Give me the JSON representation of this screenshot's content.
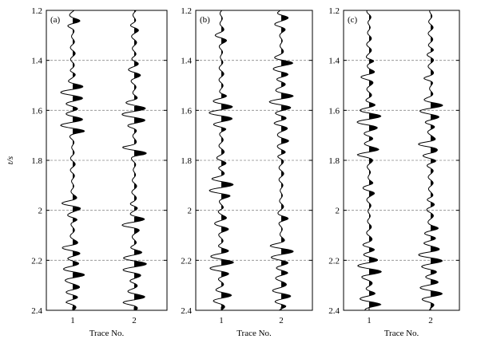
{
  "chart_data": [
    {
      "type": "seismic-wiggle",
      "panel_label": "(a)",
      "ylabel": "t/s",
      "xlabel": "Trace No.",
      "ylim": [
        1.2,
        2.4
      ],
      "y_reversed": true,
      "y_ticks": [
        "1.2",
        "1.4",
        "1.6",
        "1.8",
        "2",
        "2.2",
        "2.4"
      ],
      "categories": [
        "1",
        "2"
      ],
      "grid": "horizontal dashed",
      "fill": "positive lobes black",
      "seed": 11
    },
    {
      "type": "seismic-wiggle",
      "panel_label": "(b)",
      "xlabel": "Trace No.",
      "ylim": [
        1.2,
        2.4
      ],
      "y_reversed": true,
      "y_ticks": [
        "1.2",
        "1.4",
        "1.6",
        "1.8",
        "2",
        "2.2",
        "2.4"
      ],
      "categories": [
        "1",
        "2"
      ],
      "grid": "horizontal dashed",
      "fill": "positive lobes black",
      "seed": 23
    },
    {
      "type": "seismic-wiggle",
      "panel_label": "(c)",
      "xlabel": "Trace No.",
      "ylim": [
        1.2,
        2.4
      ],
      "y_reversed": true,
      "y_ticks": [
        "1.2",
        "1.4",
        "1.6",
        "1.8",
        "2",
        "2.2",
        "2.4"
      ],
      "categories": [
        "1",
        "2"
      ],
      "grid": "horizontal dashed",
      "fill": "positive lobes black",
      "seed": 37
    }
  ]
}
